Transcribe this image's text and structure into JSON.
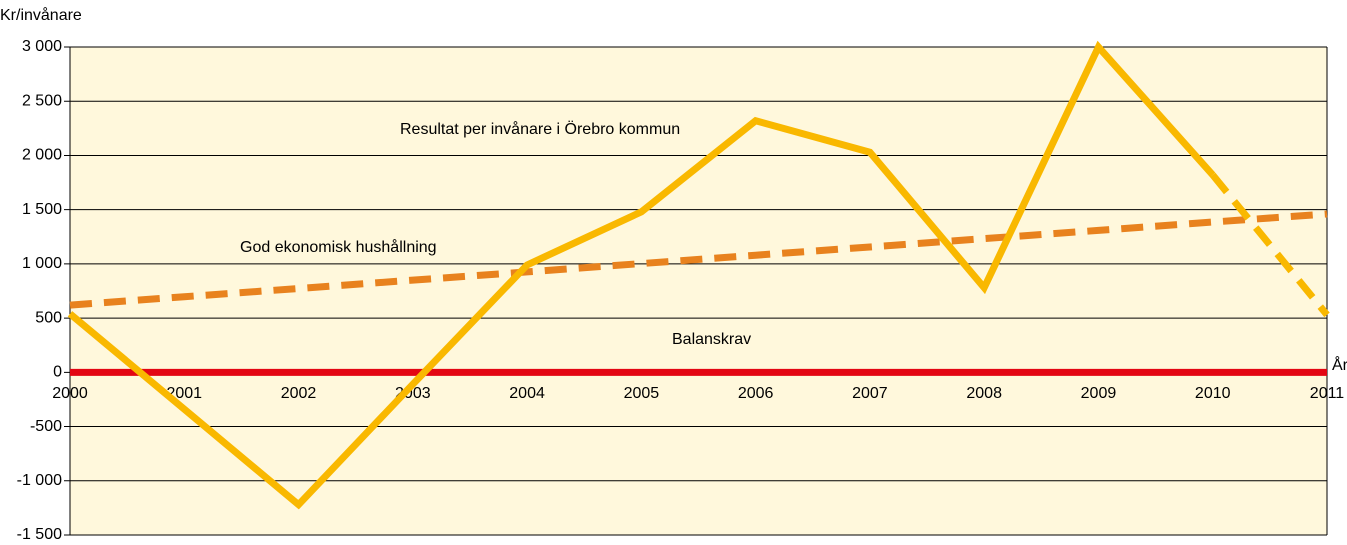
{
  "chart_data": {
    "type": "line",
    "y_axis_label": "Kr/invånare",
    "x_axis_label": "År",
    "categories": [
      "2000",
      "2001",
      "2002",
      "2003",
      "2004",
      "2005",
      "2006",
      "2007",
      "2008",
      "2009",
      "2010",
      "2011"
    ],
    "series": [
      {
        "name": "Resultat per invånare i Örebro kommun",
        "color": "#f9b800",
        "dashed_from_index": 10,
        "values": [
          540,
          -340,
          -1220,
          -110,
          990,
          1480,
          2320,
          2030,
          780,
          3000,
          1820,
          530
        ]
      },
      {
        "name": "God ekonomisk hushållning",
        "color": "#e8821e",
        "dashed": true,
        "values": [
          620,
          697,
          773,
          850,
          926,
          1003,
          1080,
          1156,
          1233,
          1309,
          1386,
          1460
        ]
      },
      {
        "name": "Balanskrav",
        "color": "#e30613",
        "values": [
          0,
          0,
          0,
          0,
          0,
          0,
          0,
          0,
          0,
          0,
          0,
          0
        ]
      }
    ],
    "ylim": [
      -1500,
      3000
    ],
    "yticks": [
      {
        "value": -1500,
        "label": "-1 500"
      },
      {
        "value": -1000,
        "label": "-1 000"
      },
      -500,
      0,
      500,
      {
        "value": 1000,
        "label": "1 000"
      },
      {
        "value": 1500,
        "label": "1 500"
      },
      {
        "value": 2000,
        "label": "2 000"
      },
      {
        "value": 2500,
        "label": "2 500"
      },
      {
        "value": 3000,
        "label": "3 000"
      }
    ],
    "grid": true,
    "background": "#fff8dc"
  }
}
